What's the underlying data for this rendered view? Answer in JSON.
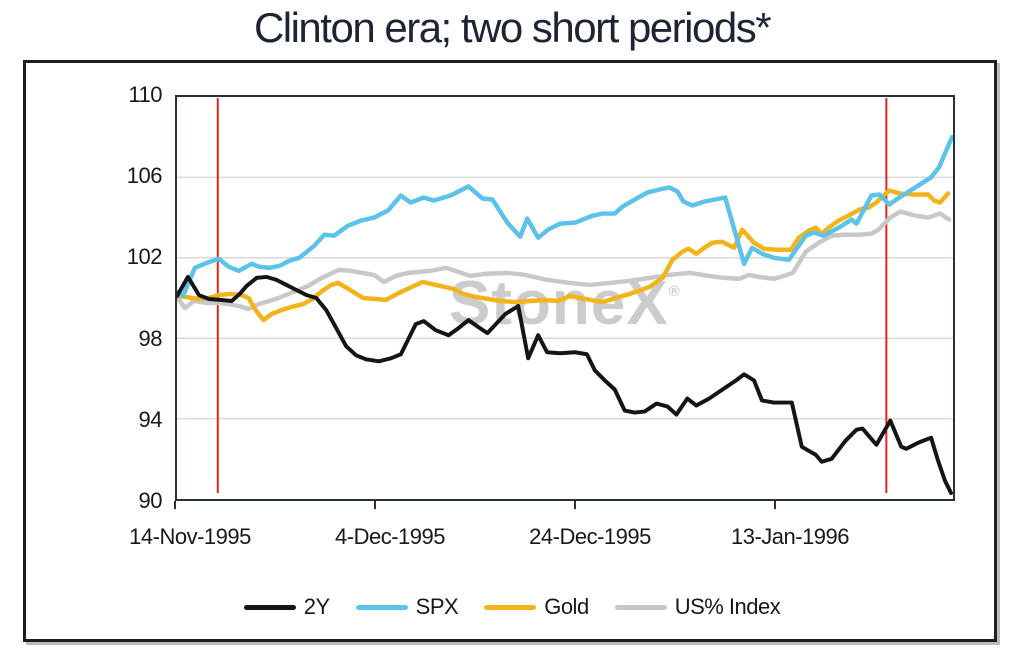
{
  "watermark": {
    "text": "StoneX",
    "reg": "®"
  },
  "chart_data": {
    "type": "line",
    "title": "Clinton era; two short periods*",
    "xlabel": "",
    "ylabel": "",
    "x_unit": "days since 14-Nov-1995",
    "x_range": [
      0,
      78
    ],
    "y_range": [
      90,
      110
    ],
    "grid": "horizontal",
    "legend_position": "bottom-center",
    "y_axis": {
      "ticks": [
        110,
        106,
        102,
        98,
        94,
        90
      ]
    },
    "x_axis": {
      "ticks": [
        {
          "day": 0,
          "label": "14-Nov-1995"
        },
        {
          "day": 20,
          "label": "4-Dec-1995"
        },
        {
          "day": 40,
          "label": "24-Dec-1995"
        },
        {
          "day": 60,
          "label": "13-Jan-1996"
        }
      ]
    },
    "gridline_values": [
      106,
      102,
      98,
      94
    ],
    "gridline_color": "#d9d9d9",
    "vlines": {
      "color": "#e8251f",
      "days": [
        4.1,
        71.3
      ]
    },
    "series": [
      {
        "name": "2Y",
        "color": "#151515",
        "stroke_width": 4,
        "points": [
          [
            0,
            100.1
          ],
          [
            1.1,
            101.05
          ],
          [
            2.2,
            100.15
          ],
          [
            3.2,
            99.95
          ],
          [
            4.5,
            99.9
          ],
          [
            5.5,
            99.85
          ],
          [
            6.3,
            100.2
          ],
          [
            7,
            100.6
          ],
          [
            8,
            101.0
          ],
          [
            9,
            101.05
          ],
          [
            10,
            100.9
          ],
          [
            11,
            100.65
          ],
          [
            12,
            100.4
          ],
          [
            13,
            100.15
          ],
          [
            14,
            100.0
          ],
          [
            15,
            99.4
          ],
          [
            16,
            98.5
          ],
          [
            17,
            97.6
          ],
          [
            18,
            97.15
          ],
          [
            19,
            96.95
          ],
          [
            20.3,
            96.85
          ],
          [
            21.5,
            97.0
          ],
          [
            22.5,
            97.2
          ],
          [
            24,
            98.7
          ],
          [
            24.8,
            98.85
          ],
          [
            26,
            98.4
          ],
          [
            27.3,
            98.15
          ],
          [
            28.3,
            98.5
          ],
          [
            29.3,
            98.9
          ],
          [
            30.3,
            98.55
          ],
          [
            31.2,
            98.25
          ],
          [
            33,
            99.2
          ],
          [
            34.3,
            99.6
          ],
          [
            35.3,
            97.0
          ],
          [
            36.3,
            98.15
          ],
          [
            37.2,
            97.3
          ],
          [
            38.5,
            97.25
          ],
          [
            40,
            97.3
          ],
          [
            41.2,
            97.2
          ],
          [
            42,
            96.4
          ],
          [
            43,
            95.9
          ],
          [
            44,
            95.45
          ],
          [
            45,
            94.4
          ],
          [
            46,
            94.3
          ],
          [
            47,
            94.35
          ],
          [
            48.2,
            94.75
          ],
          [
            49.3,
            94.6
          ],
          [
            50.2,
            94.2
          ],
          [
            51.3,
            95.0
          ],
          [
            52.2,
            94.65
          ],
          [
            53.5,
            95.0
          ],
          [
            55,
            95.5
          ],
          [
            56.2,
            95.9
          ],
          [
            57,
            96.2
          ],
          [
            58,
            95.9
          ],
          [
            58.8,
            94.9
          ],
          [
            60,
            94.8
          ],
          [
            61.8,
            94.8
          ],
          [
            62.8,
            92.6
          ],
          [
            63.5,
            92.4
          ],
          [
            64.2,
            92.2
          ],
          [
            64.8,
            91.85
          ],
          [
            65.8,
            92.0
          ],
          [
            67.2,
            92.9
          ],
          [
            68.3,
            93.45
          ],
          [
            68.9,
            93.5
          ],
          [
            70.3,
            92.7
          ],
          [
            71.7,
            93.9
          ],
          [
            72.8,
            92.6
          ],
          [
            73.3,
            92.5
          ],
          [
            74.5,
            92.8
          ],
          [
            75.8,
            93.05
          ],
          [
            76.5,
            91.9
          ],
          [
            77.2,
            90.9
          ],
          [
            77.8,
            90.3
          ]
        ]
      },
      {
        "name": "SPX",
        "color": "#5bc2e9",
        "stroke_width": 4.5,
        "points": [
          [
            0,
            100.3
          ],
          [
            0.6,
            100.1
          ],
          [
            1.8,
            101.5
          ],
          [
            3,
            101.75
          ],
          [
            4.2,
            101.95
          ],
          [
            5.2,
            101.55
          ],
          [
            6.2,
            101.35
          ],
          [
            7.5,
            101.7
          ],
          [
            8.3,
            101.55
          ],
          [
            9.3,
            101.5
          ],
          [
            10.3,
            101.6
          ],
          [
            11.3,
            101.85
          ],
          [
            12.3,
            102.0
          ],
          [
            13.8,
            102.6
          ],
          [
            14.8,
            103.15
          ],
          [
            15.8,
            103.1
          ],
          [
            17.2,
            103.6
          ],
          [
            18.5,
            103.85
          ],
          [
            19.8,
            104.0
          ],
          [
            21.2,
            104.35
          ],
          [
            22.5,
            105.1
          ],
          [
            23.5,
            104.75
          ],
          [
            24.8,
            105.0
          ],
          [
            25.8,
            104.85
          ],
          [
            27.5,
            105.1
          ],
          [
            29.3,
            105.55
          ],
          [
            30.7,
            104.95
          ],
          [
            31.7,
            104.9
          ],
          [
            33.2,
            103.75
          ],
          [
            34.5,
            103.05
          ],
          [
            35.2,
            103.95
          ],
          [
            36.3,
            103.0
          ],
          [
            37.3,
            103.4
          ],
          [
            38.5,
            103.7
          ],
          [
            40,
            103.75
          ],
          [
            41.8,
            104.1
          ],
          [
            42.8,
            104.2
          ],
          [
            44,
            104.2
          ],
          [
            44.8,
            104.55
          ],
          [
            46.2,
            104.95
          ],
          [
            47.3,
            105.25
          ],
          [
            48.5,
            105.4
          ],
          [
            49.5,
            105.5
          ],
          [
            50.3,
            105.3
          ],
          [
            50.9,
            104.8
          ],
          [
            51.8,
            104.6
          ],
          [
            53,
            104.8
          ],
          [
            55.1,
            105.0
          ],
          [
            57,
            101.7
          ],
          [
            57.8,
            102.5
          ],
          [
            58.8,
            102.2
          ],
          [
            60,
            102.0
          ],
          [
            61.5,
            101.9
          ],
          [
            63.2,
            103.1
          ],
          [
            64,
            103.25
          ],
          [
            65,
            103.1
          ],
          [
            66.5,
            103.5
          ],
          [
            67.8,
            103.9
          ],
          [
            68.3,
            103.7
          ],
          [
            69.8,
            105.1
          ],
          [
            70.6,
            105.15
          ],
          [
            71.6,
            104.65
          ],
          [
            72.6,
            105.0
          ],
          [
            74.2,
            105.5
          ],
          [
            75.8,
            106.0
          ],
          [
            76.6,
            106.5
          ],
          [
            77.2,
            107.2
          ],
          [
            77.9,
            108.0
          ]
        ]
      },
      {
        "name": "Gold",
        "color": "#f3b31b",
        "stroke_width": 4.5,
        "points": [
          [
            0,
            100.1
          ],
          [
            1,
            100.05
          ],
          [
            2,
            99.95
          ],
          [
            3.2,
            100.0
          ],
          [
            4.2,
            100.15
          ],
          [
            5.5,
            100.2
          ],
          [
            6.5,
            100.15
          ],
          [
            7.2,
            100.0
          ],
          [
            7.9,
            99.4
          ],
          [
            8.7,
            98.9
          ],
          [
            9.5,
            99.2
          ],
          [
            10.5,
            99.4
          ],
          [
            11.5,
            99.55
          ],
          [
            12.7,
            99.7
          ],
          [
            13.6,
            99.95
          ],
          [
            14.6,
            100.35
          ],
          [
            15.5,
            100.65
          ],
          [
            16.2,
            100.75
          ],
          [
            17.4,
            100.4
          ],
          [
            18.7,
            100.0
          ],
          [
            20,
            99.95
          ],
          [
            21,
            99.9
          ],
          [
            22.3,
            100.25
          ],
          [
            23.4,
            100.5
          ],
          [
            24.7,
            100.8
          ],
          [
            26,
            100.65
          ],
          [
            27.8,
            100.45
          ],
          [
            28.8,
            100.2
          ],
          [
            30,
            100.05
          ],
          [
            31.3,
            99.95
          ],
          [
            32.5,
            99.85
          ],
          [
            34,
            99.8
          ],
          [
            35.5,
            99.85
          ],
          [
            37,
            99.9
          ],
          [
            38.3,
            99.85
          ],
          [
            39.5,
            100.1
          ],
          [
            41,
            99.95
          ],
          [
            42.8,
            99.8
          ],
          [
            44.1,
            100.0
          ],
          [
            45.8,
            100.25
          ],
          [
            47.5,
            100.55
          ],
          [
            48.8,
            101.0
          ],
          [
            49.8,
            101.9
          ],
          [
            50.8,
            102.3
          ],
          [
            51.4,
            102.45
          ],
          [
            52.2,
            102.2
          ],
          [
            53,
            102.5
          ],
          [
            53.8,
            102.75
          ],
          [
            54.8,
            102.8
          ],
          [
            56,
            102.5
          ],
          [
            56.8,
            103.4
          ],
          [
            58,
            102.75
          ],
          [
            59,
            102.45
          ],
          [
            60.3,
            102.4
          ],
          [
            61.7,
            102.4
          ],
          [
            62.5,
            103.0
          ],
          [
            63.5,
            103.35
          ],
          [
            64.2,
            103.5
          ],
          [
            64.8,
            103.2
          ],
          [
            65.5,
            103.5
          ],
          [
            66.5,
            103.85
          ],
          [
            67.5,
            104.1
          ],
          [
            68.6,
            104.4
          ],
          [
            69.5,
            104.5
          ],
          [
            70.3,
            104.75
          ],
          [
            70.8,
            105.0
          ],
          [
            71.6,
            105.35
          ],
          [
            72.6,
            105.2
          ],
          [
            74,
            105.15
          ],
          [
            75.5,
            105.15
          ],
          [
            76.1,
            104.85
          ],
          [
            76.7,
            104.75
          ],
          [
            77.5,
            105.2
          ]
        ]
      },
      {
        "name": "US% Index",
        "color": "#c8c8c8",
        "stroke_width": 4.5,
        "points": [
          [
            0,
            100.05
          ],
          [
            0.8,
            99.5
          ],
          [
            1.7,
            99.85
          ],
          [
            3,
            99.75
          ],
          [
            4.2,
            99.75
          ],
          [
            5.2,
            99.7
          ],
          [
            6.2,
            99.6
          ],
          [
            7.2,
            99.45
          ],
          [
            8.2,
            99.7
          ],
          [
            9.3,
            99.85
          ],
          [
            10.2,
            100.0
          ],
          [
            11.2,
            100.2
          ],
          [
            12.2,
            100.4
          ],
          [
            13.2,
            100.6
          ],
          [
            14.2,
            100.9
          ],
          [
            15.4,
            101.2
          ],
          [
            16.3,
            101.4
          ],
          [
            17.5,
            101.35
          ],
          [
            18.6,
            101.25
          ],
          [
            19.8,
            101.15
          ],
          [
            20.8,
            100.8
          ],
          [
            22,
            101.1
          ],
          [
            23.3,
            101.25
          ],
          [
            25.5,
            101.35
          ],
          [
            27,
            101.5
          ],
          [
            29.5,
            101.1
          ],
          [
            31,
            101.2
          ],
          [
            33.2,
            101.25
          ],
          [
            35,
            101.15
          ],
          [
            37.2,
            100.9
          ],
          [
            39.5,
            100.75
          ],
          [
            41.5,
            100.65
          ],
          [
            43.5,
            100.75
          ],
          [
            45.5,
            100.85
          ],
          [
            47.5,
            101.0
          ],
          [
            49.5,
            101.15
          ],
          [
            51.5,
            101.25
          ],
          [
            53.5,
            101.1
          ],
          [
            55,
            101.0
          ],
          [
            56.5,
            100.95
          ],
          [
            57.5,
            101.15
          ],
          [
            58.5,
            101.05
          ],
          [
            60,
            100.95
          ],
          [
            61,
            101.1
          ],
          [
            61.9,
            101.25
          ],
          [
            63.2,
            102.3
          ],
          [
            64.5,
            102.75
          ],
          [
            65.8,
            103.1
          ],
          [
            67,
            103.15
          ],
          [
            68.5,
            103.15
          ],
          [
            69.8,
            103.2
          ],
          [
            70.5,
            103.4
          ],
          [
            71.7,
            104.0
          ],
          [
            72.7,
            104.3
          ],
          [
            74.2,
            104.1
          ],
          [
            75.5,
            104.0
          ],
          [
            76.7,
            104.2
          ],
          [
            77.6,
            103.9
          ]
        ]
      }
    ]
  }
}
